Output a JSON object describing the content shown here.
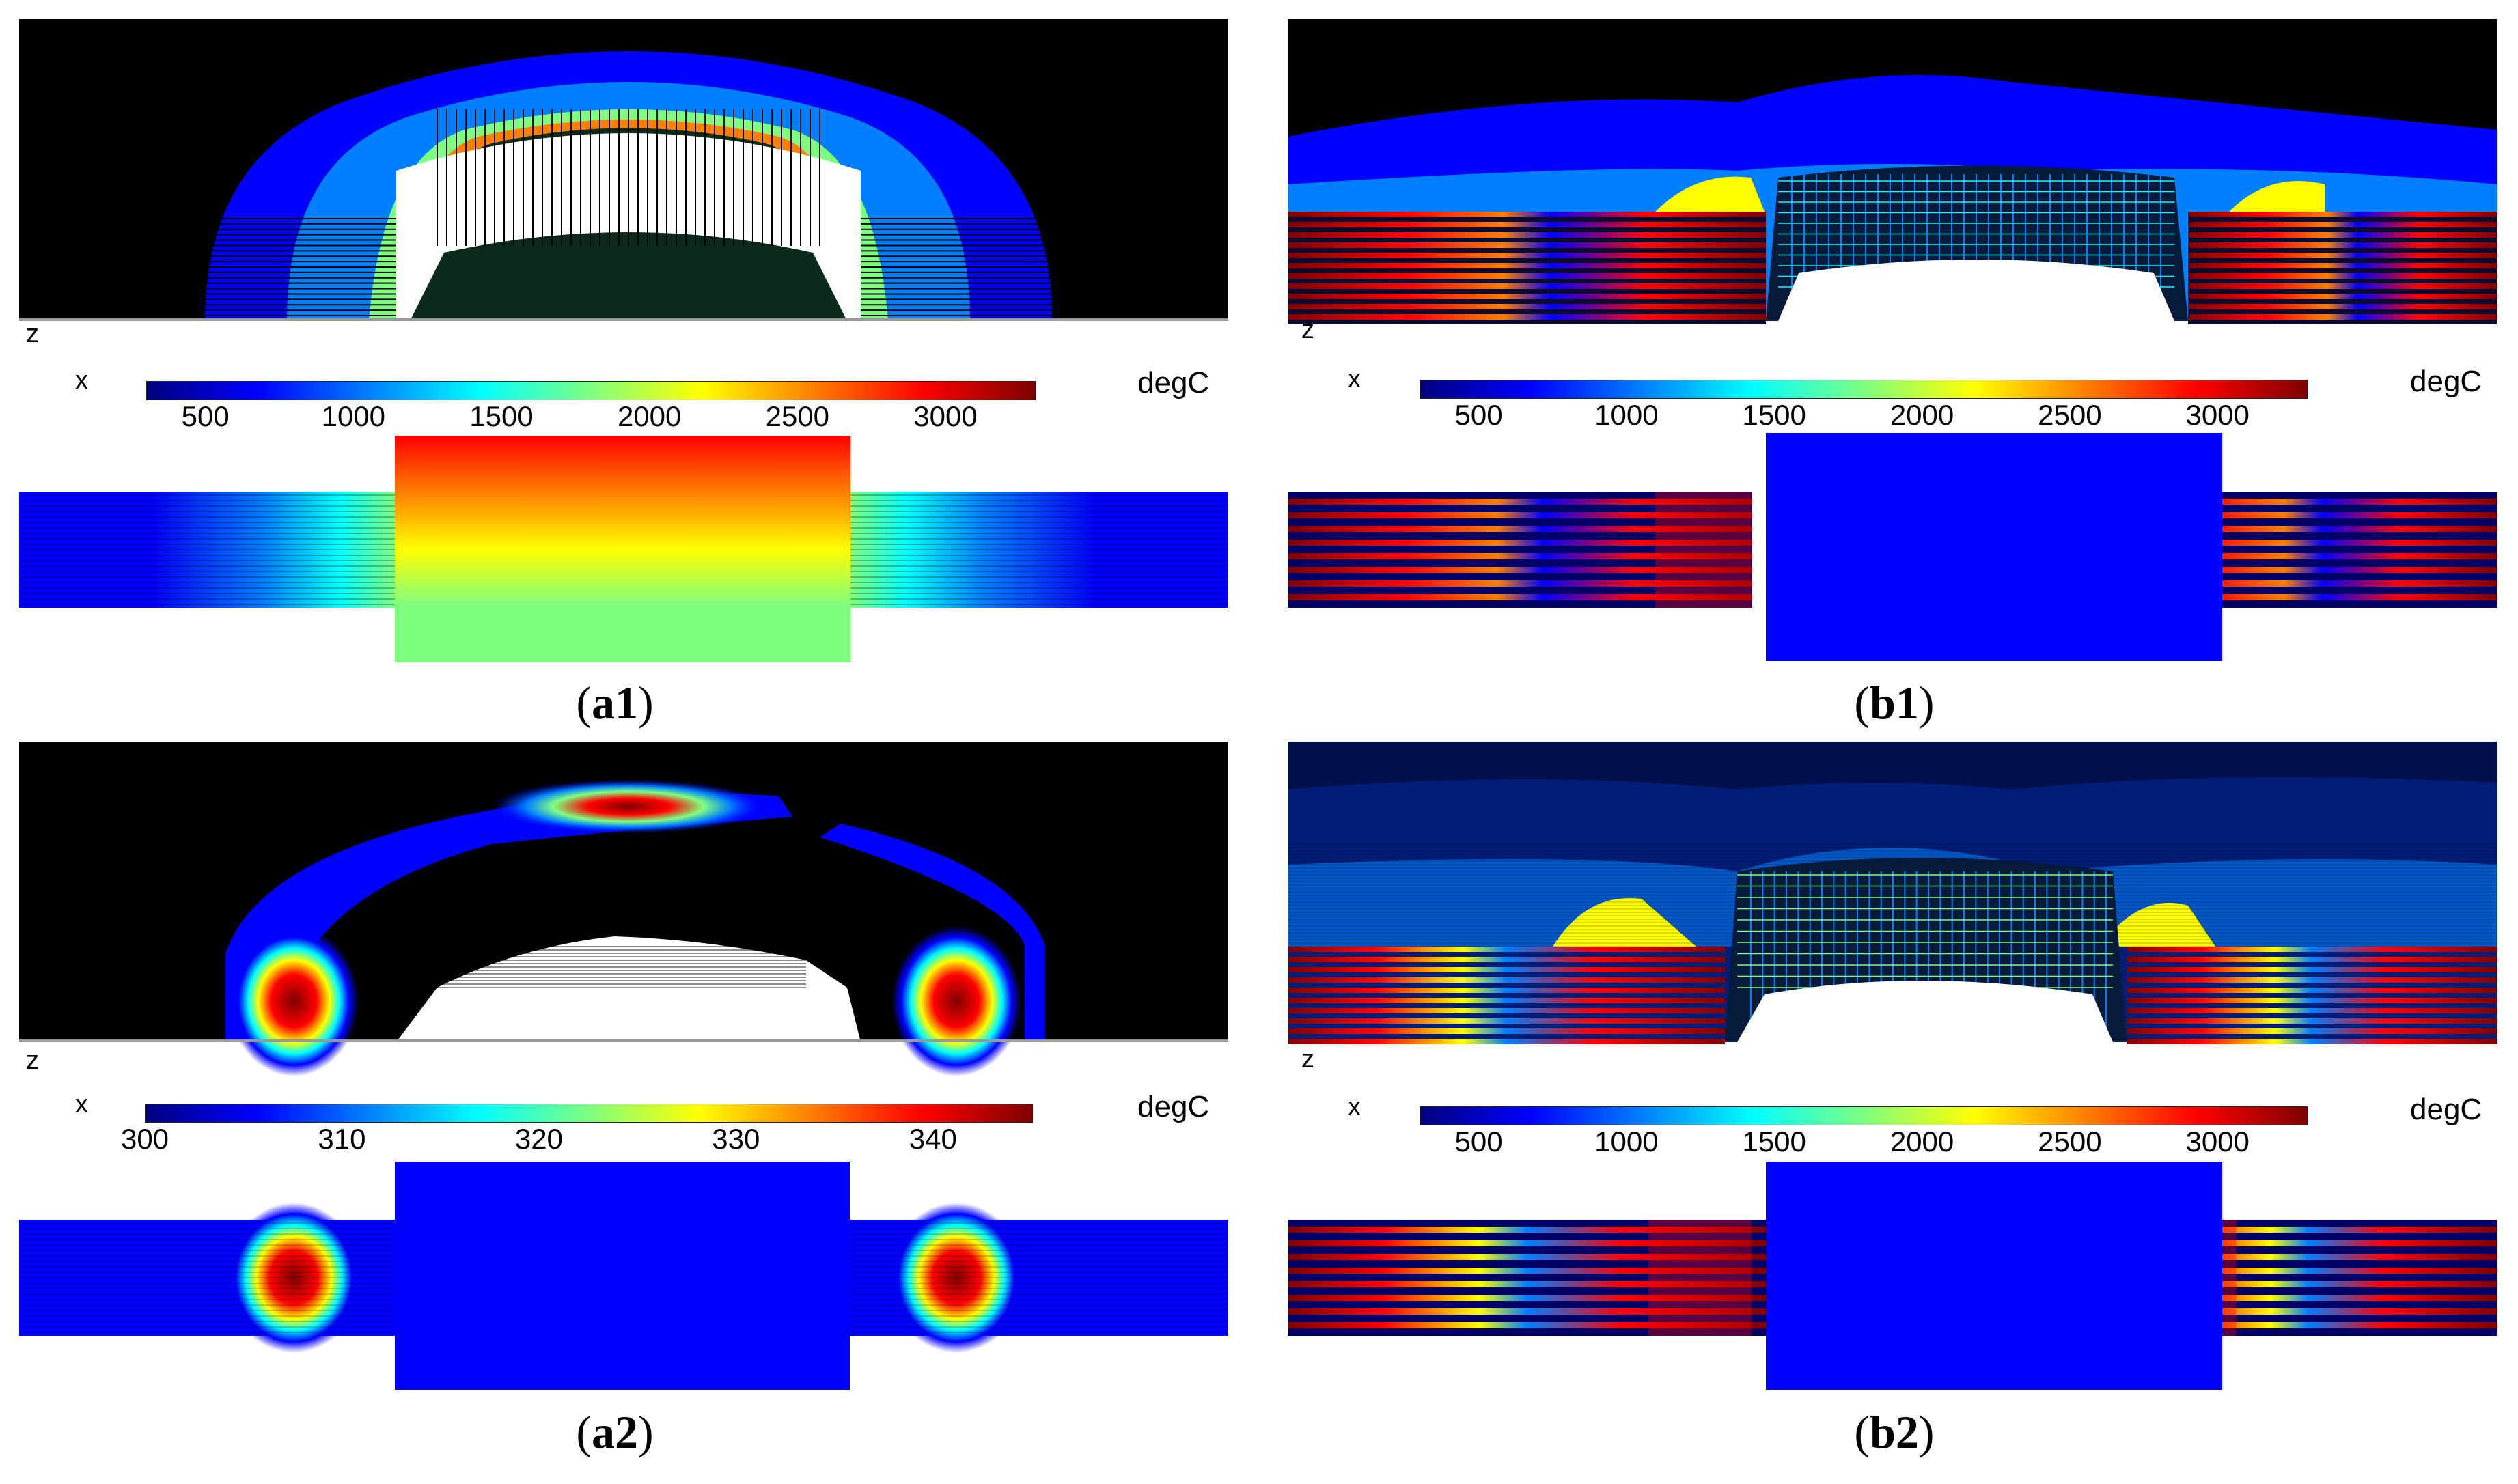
{
  "colormap": [
    "#00007f",
    "#0000ff",
    "#007fff",
    "#00ffff",
    "#7fff7f",
    "#ffff00",
    "#ff7f00",
    "#ff0000",
    "#7f0000"
  ],
  "background": "#000000",
  "panels": [
    {
      "id": "a1",
      "label": "a1",
      "axis_x": "x",
      "axis_z": "z",
      "unit": "degC",
      "colorbar": {
        "min": 300,
        "max": 3300,
        "ticks": [
          "500",
          "1000",
          "1500",
          "2000",
          "2500",
          "3000"
        ],
        "tick_values": [
          500,
          1000,
          1500,
          2000,
          2500,
          3000
        ]
      }
    },
    {
      "id": "b1",
      "label": "b1",
      "axis_x": "x",
      "axis_z": "z",
      "unit": "degC",
      "colorbar": {
        "min": 300,
        "max": 3300,
        "ticks": [
          "500",
          "1000",
          "1500",
          "2000",
          "2500",
          "3000"
        ],
        "tick_values": [
          500,
          1000,
          1500,
          2000,
          2500,
          3000
        ]
      }
    },
    {
      "id": "a2",
      "label": "a2",
      "axis_x": "x",
      "axis_z": "z",
      "unit": "degC",
      "colorbar": {
        "min": 300,
        "max": 345,
        "ticks": [
          "300",
          "310",
          "320",
          "330",
          "340"
        ],
        "tick_values": [
          300,
          310,
          320,
          330,
          340
        ]
      }
    },
    {
      "id": "b2",
      "label": "b2",
      "axis_x": "x",
      "axis_z": "z",
      "unit": "degC",
      "colorbar": {
        "min": 300,
        "max": 3300,
        "ticks": [
          "500",
          "1000",
          "1500",
          "2000",
          "2500",
          "3000"
        ],
        "tick_values": [
          500,
          1000,
          1500,
          2000,
          2500,
          3000
        ]
      }
    }
  ]
}
